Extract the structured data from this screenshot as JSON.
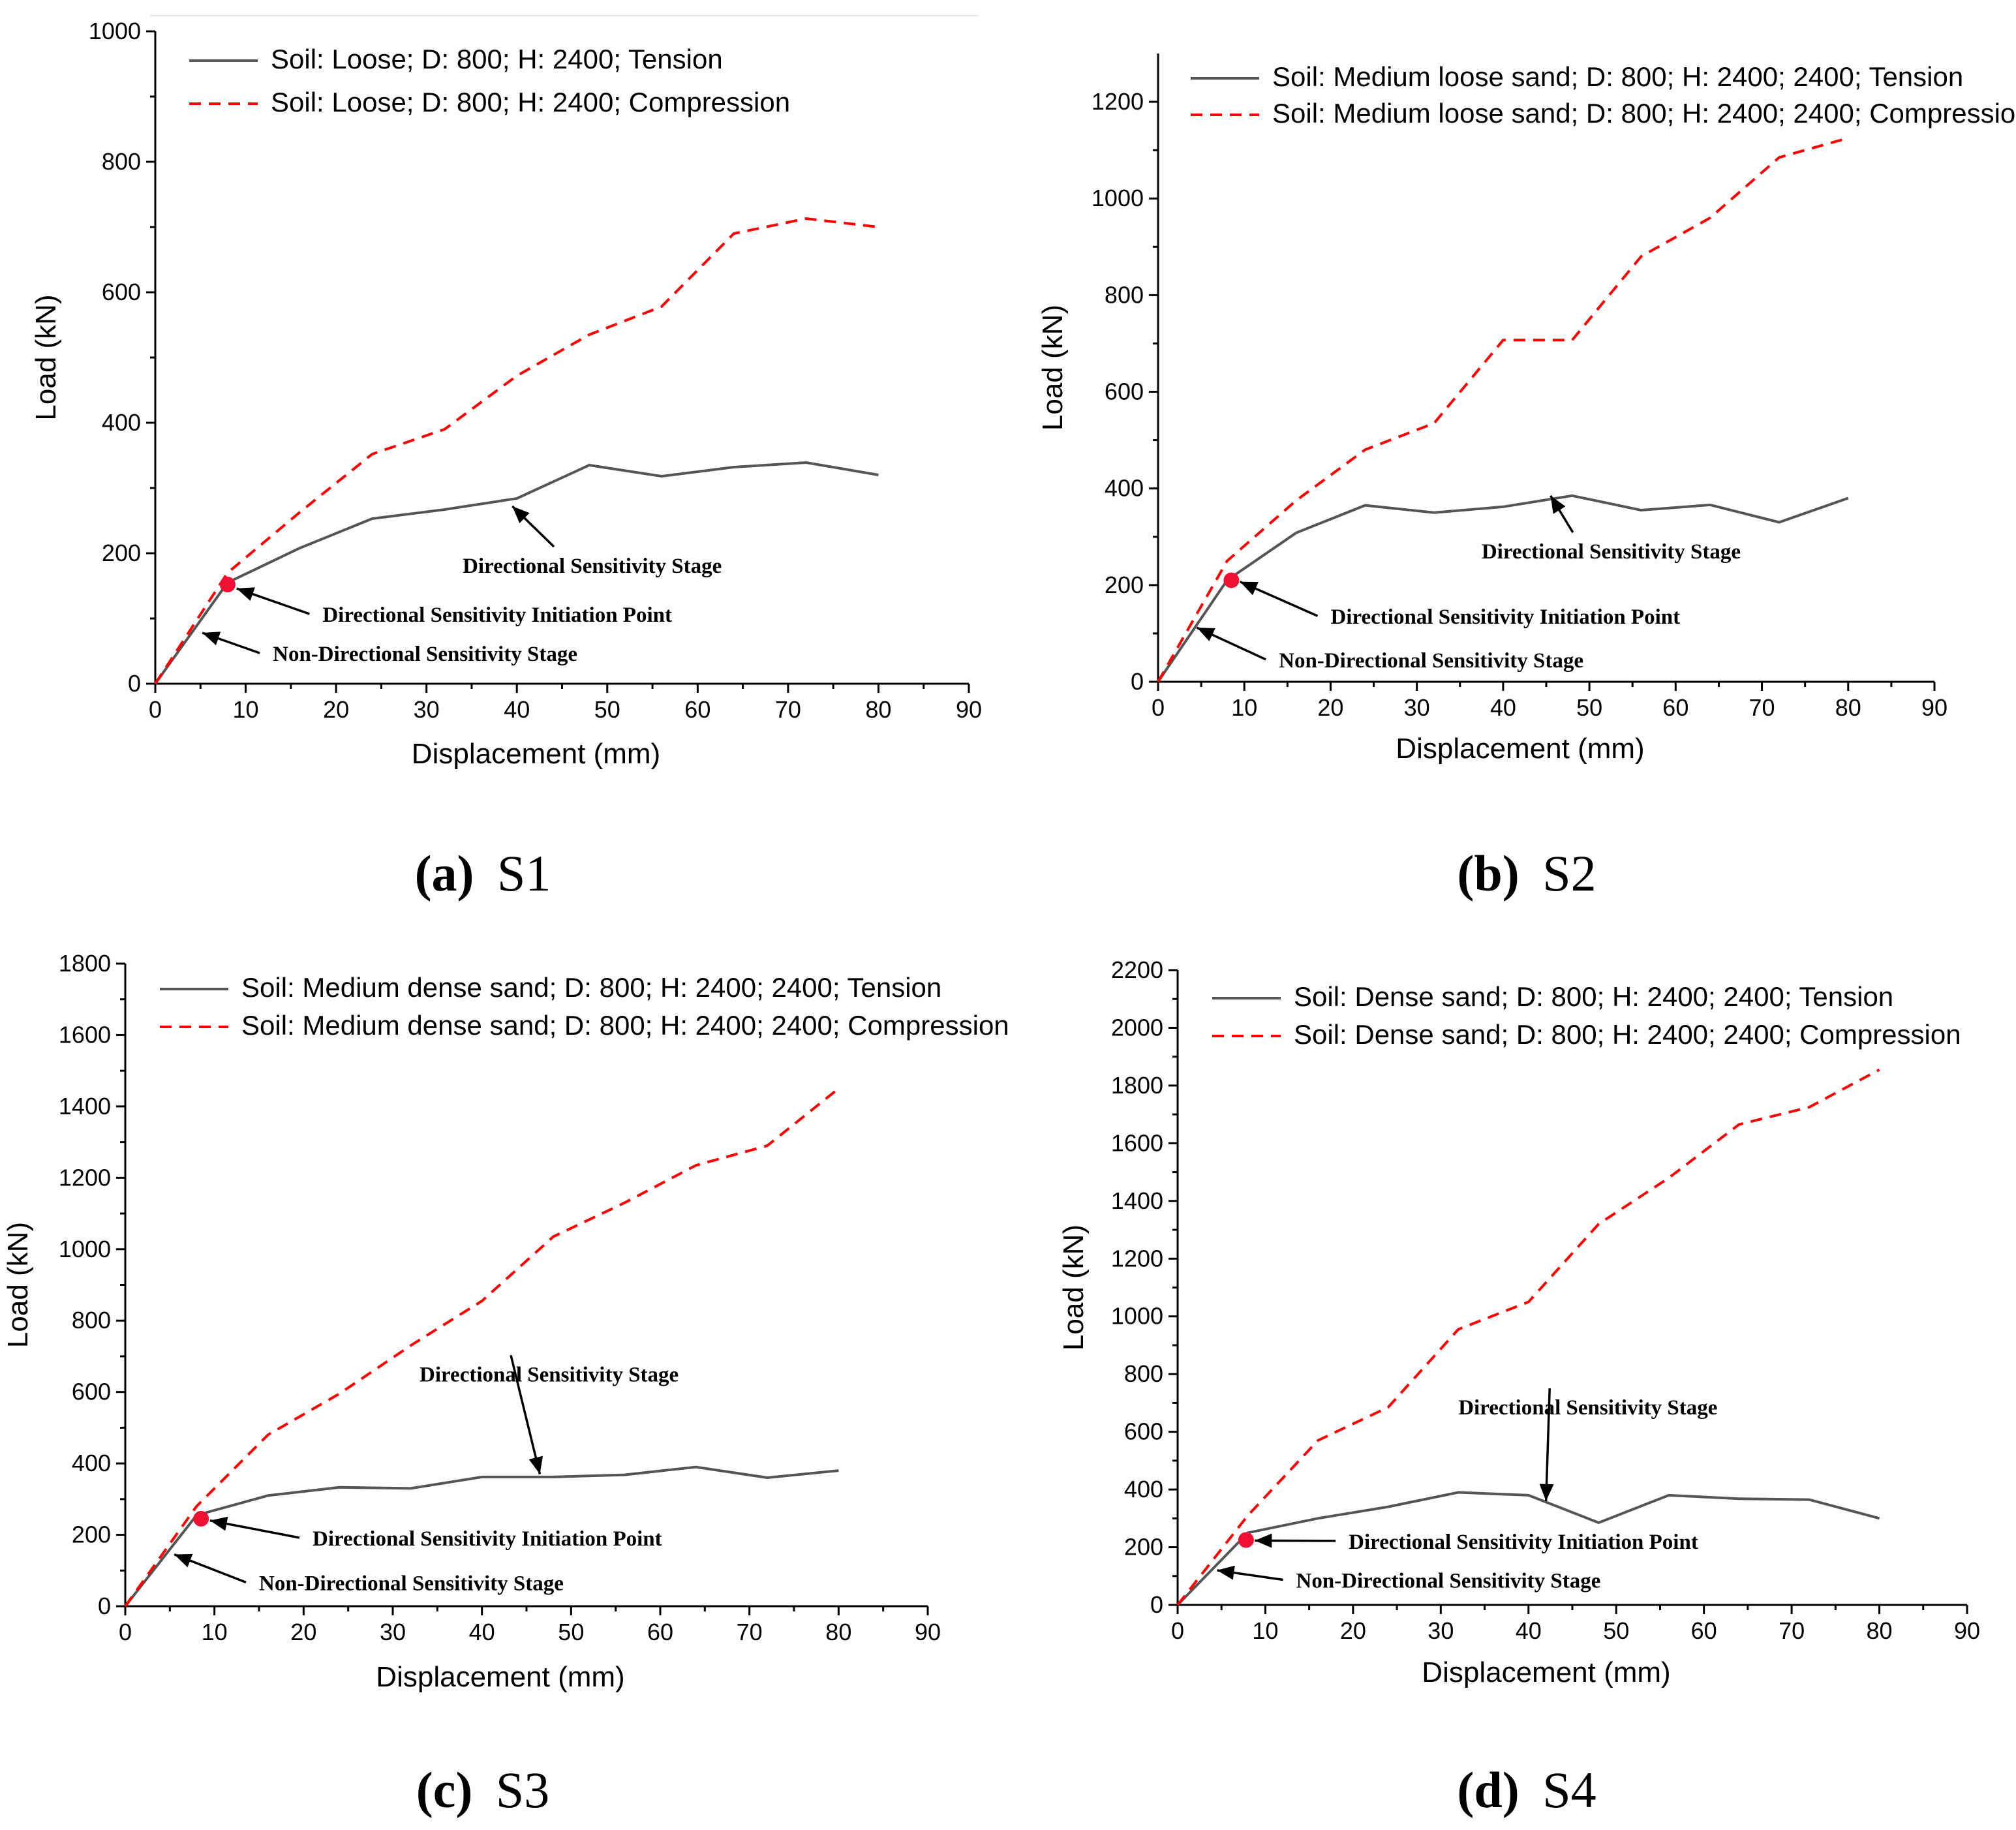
{
  "colors": {
    "tension": "#555555",
    "compression": "#ff0000",
    "initiation_point": "#ee1133",
    "axis": "#000000"
  },
  "chart_data": [
    {
      "type": "line",
      "panel_label": "(a)",
      "panel_id": "S1",
      "xlabel": "Displacement (mm)",
      "ylabel": "Load (kN)",
      "xlim": [
        0,
        90
      ],
      "ylim": [
        0,
        1000
      ],
      "xticks": [
        0,
        10,
        20,
        30,
        40,
        50,
        60,
        70,
        80,
        90
      ],
      "yticks": [
        0,
        200,
        400,
        600,
        800,
        1000
      ],
      "legend_placement": "top-left",
      "series": [
        {
          "name": "Soil: Loose; D: 800; H: 2400; Tension",
          "style": "solid",
          "x": [
            0,
            8,
            16,
            24,
            32,
            40,
            48,
            56,
            64,
            72,
            80
          ],
          "y": [
            0,
            155,
            208,
            253,
            267,
            284,
            335,
            318,
            332,
            339,
            320
          ]
        },
        {
          "name": "Soil: Loose; D: 800; H: 2400; Compression",
          "style": "dashed",
          "x": [
            0,
            8,
            16,
            24,
            32,
            40,
            48,
            56,
            64,
            72,
            80
          ],
          "y": [
            0,
            170,
            263,
            352,
            390,
            472,
            535,
            578,
            690,
            713,
            700
          ]
        }
      ],
      "initiation_point": {
        "x": 8,
        "y": 152
      },
      "annotations": [
        {
          "text": "Directional Sensitivity Stage",
          "arrow_to": [
            39.5,
            272
          ],
          "text_at": [
            34,
            170
          ]
        },
        {
          "text": "Directional Sensitivity Initiation Point",
          "arrow_to": [
            9,
            146
          ],
          "text_at": [
            18.5,
            95
          ]
        },
        {
          "text": "Non-Directional Sensitivity Stage",
          "arrow_to": [
            5.2,
            78
          ],
          "text_at": [
            13,
            35
          ]
        }
      ]
    },
    {
      "type": "line",
      "panel_label": "(b)",
      "panel_id": "S2",
      "xlabel": "Displacement (mm)",
      "ylabel": "Load (kN)",
      "xlim": [
        0,
        90
      ],
      "ylim": [
        0,
        1300
      ],
      "xticks": [
        0,
        10,
        20,
        30,
        40,
        50,
        60,
        70,
        80,
        90
      ],
      "yticks": [
        0,
        200,
        400,
        600,
        800,
        1000,
        1200
      ],
      "legend_placement": "top-left",
      "series": [
        {
          "name": "Soil: Medium loose sand; D: 800; H: 2400; 2400; Tension",
          "style": "solid",
          "x": [
            0,
            8,
            16,
            24,
            32,
            40,
            48,
            56,
            64,
            72,
            80
          ],
          "y": [
            0,
            210,
            308,
            365,
            350,
            362,
            385,
            355,
            366,
            330,
            380
          ]
        },
        {
          "name": "Soil: Medium loose sand; D: 800; H: 2400; 2400; Compression",
          "style": "dashed",
          "x": [
            0,
            8,
            16,
            24,
            32,
            40,
            48,
            56,
            64,
            72,
            80
          ],
          "y": [
            0,
            250,
            375,
            480,
            535,
            707,
            707,
            880,
            960,
            1085,
            1125
          ]
        }
      ],
      "initiation_point": {
        "x": 8.5,
        "y": 210
      },
      "annotations": [
        {
          "text": "Directional Sensitivity Stage",
          "arrow_to": [
            45.5,
            385
          ],
          "text_at": [
            37.5,
            255
          ]
        },
        {
          "text": "Directional Sensitivity Initiation Point",
          "arrow_to": [
            9.5,
            207
          ],
          "text_at": [
            20,
            120
          ]
        },
        {
          "text": "Non-Directional Sensitivity Stage",
          "arrow_to": [
            4.5,
            112
          ],
          "text_at": [
            14,
            30
          ]
        }
      ]
    },
    {
      "type": "line",
      "panel_label": "(c)",
      "panel_id": "S3",
      "xlabel": "Displacement (mm)",
      "ylabel": "Load (kN)",
      "xlim": [
        0,
        90
      ],
      "ylim": [
        0,
        1800
      ],
      "xticks": [
        0,
        10,
        20,
        30,
        40,
        50,
        60,
        70,
        80,
        90
      ],
      "yticks": [
        0,
        200,
        400,
        600,
        800,
        1000,
        1200,
        1400,
        1600,
        1800
      ],
      "legend_placement": "top-left",
      "series": [
        {
          "name": "Soil: Medium dense sand; D: 800; H: 2400; 2400; Tension",
          "style": "solid",
          "x": [
            0,
            8,
            16,
            24,
            32,
            40,
            48,
            56,
            64,
            72,
            80
          ],
          "y": [
            0,
            255,
            310,
            333,
            330,
            362,
            362,
            368,
            390,
            360,
            380
          ]
        },
        {
          "name": "Soil: Medium dense sand; D: 800; H: 2400; 2400; Compression",
          "style": "dashed",
          "x": [
            0,
            8,
            16,
            24,
            32,
            40,
            48,
            56,
            64,
            72,
            80
          ],
          "y": [
            0,
            280,
            480,
            595,
            730,
            855,
            1035,
            1130,
            1235,
            1290,
            1450
          ]
        }
      ],
      "initiation_point": {
        "x": 8.5,
        "y": 245
      },
      "annotations": [
        {
          "text": "Directional Sensitivity Stage",
          "arrow_to": [
            46.5,
            370
          ],
          "text_at": [
            33,
            630
          ]
        },
        {
          "text": "Directional Sensitivity Initiation Point",
          "arrow_to": [
            9.5,
            240
          ],
          "text_at": [
            21,
            170
          ]
        },
        {
          "text": "Non-Directional Sensitivity Stage",
          "arrow_to": [
            5.5,
            145
          ],
          "text_at": [
            15,
            45
          ]
        }
      ]
    },
    {
      "type": "line",
      "panel_label": "(d)",
      "panel_id": "S4",
      "xlabel": "Displacement (mm)",
      "ylabel": "Load (kN)",
      "xlim": [
        0,
        90
      ],
      "ylim": [
        0,
        2200
      ],
      "xticks": [
        0,
        10,
        20,
        30,
        40,
        50,
        60,
        70,
        80,
        90
      ],
      "yticks": [
        0,
        200,
        400,
        600,
        800,
        1000,
        1200,
        1400,
        1600,
        1800,
        2000,
        2200
      ],
      "legend_placement": "top-left",
      "series": [
        {
          "name": "Soil: Dense sand; D: 800; H: 2400; 2400; Tension",
          "style": "solid",
          "x": [
            0,
            8,
            16,
            24,
            32,
            40,
            48,
            56,
            64,
            72,
            80
          ],
          "y": [
            0,
            250,
            300,
            340,
            390,
            380,
            285,
            380,
            368,
            365,
            300
          ]
        },
        {
          "name": "Soil: Dense sand; D: 800; H: 2400; 2400; Compression",
          "style": "dashed",
          "x": [
            0,
            8,
            16,
            24,
            32,
            40,
            48,
            56,
            64,
            72,
            80
          ],
          "y": [
            0,
            310,
            570,
            685,
            955,
            1050,
            1320,
            1480,
            1665,
            1725,
            1855
          ]
        }
      ],
      "initiation_point": {
        "x": 7.8,
        "y": 225
      },
      "annotations": [
        {
          "text": "Directional Sensitivity Stage",
          "arrow_to": [
            42,
            360
          ],
          "text_at": [
            32,
            660
          ]
        },
        {
          "text": "Directional Sensitivity Initiation Point",
          "arrow_to": [
            8.8,
            223
          ],
          "text_at": [
            19.5,
            195
          ]
        },
        {
          "text": "Non-Directional Sensitivity Stage",
          "arrow_to": [
            4.5,
            120
          ],
          "text_at": [
            13.5,
            60
          ]
        }
      ]
    }
  ]
}
